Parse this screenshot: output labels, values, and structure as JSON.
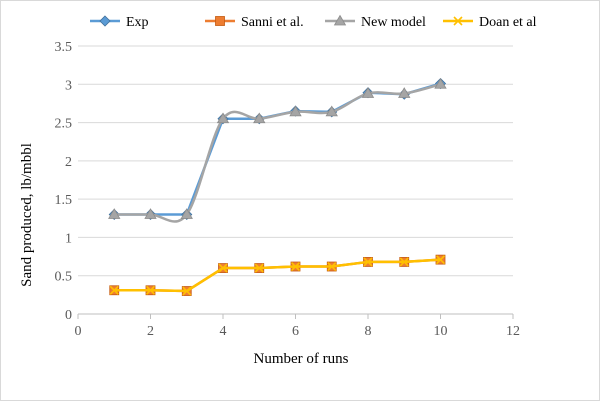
{
  "chart_data": {
    "type": "line",
    "xlabel": "Number of runs",
    "ylabel": "Sand produced, lb/mbbl",
    "xlim": [
      0,
      12
    ],
    "ylim": [
      0,
      3.5
    ],
    "xticks": [
      "0",
      "2",
      "4",
      "6",
      "8",
      "10",
      "12"
    ],
    "yticks": [
      "0",
      "0.5",
      "1",
      "1.5",
      "2",
      "2.5",
      "3",
      "3.5"
    ],
    "grid": "horizontal",
    "legend_position": "top",
    "x": [
      1,
      2,
      3,
      4,
      5,
      6,
      7,
      8,
      9,
      10
    ],
    "series": [
      {
        "name": "Exp",
        "color": "#5b9bd5",
        "marker": "diamond",
        "smooth": false,
        "values": [
          1.3,
          1.3,
          1.3,
          2.55,
          2.55,
          2.65,
          2.64,
          2.89,
          2.87,
          3.01
        ]
      },
      {
        "name": "Sanni et al.",
        "color": "#ed7d31",
        "marker": "square",
        "smooth": false,
        "values": [
          0.31,
          0.31,
          0.3,
          0.6,
          0.6,
          0.62,
          0.62,
          0.68,
          0.68,
          0.71
        ]
      },
      {
        "name": "New model",
        "color": "#a5a5a5",
        "marker": "triangle",
        "smooth": true,
        "values": [
          1.3,
          1.3,
          1.3,
          2.55,
          2.55,
          2.64,
          2.64,
          2.88,
          2.88,
          3.0
        ]
      },
      {
        "name": "Doan et al",
        "color": "#ffc000",
        "marker": "x",
        "smooth": false,
        "values": [
          0.31,
          0.31,
          0.3,
          0.6,
          0.6,
          0.62,
          0.62,
          0.68,
          0.68,
          0.71
        ]
      }
    ]
  }
}
